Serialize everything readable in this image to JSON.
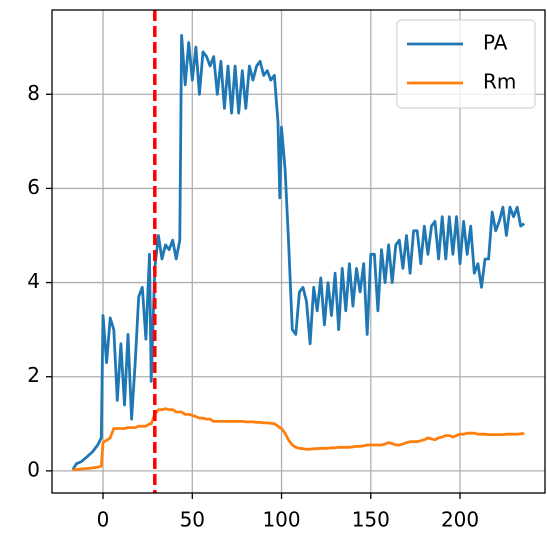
{
  "chart_data": {
    "type": "line",
    "x": [
      -17,
      -15,
      -12,
      -9,
      -6,
      -3,
      -1,
      0,
      2,
      4,
      6,
      8,
      10,
      12,
      14,
      16,
      18,
      20,
      22,
      24,
      26,
      27,
      29,
      31,
      33,
      35,
      37,
      39,
      41,
      43,
      44,
      46,
      48,
      50,
      52,
      54,
      56,
      58,
      60,
      62,
      64,
      66,
      68,
      70,
      72,
      74,
      76,
      78,
      80,
      82,
      84,
      86,
      88,
      90,
      92,
      94,
      96,
      98,
      99,
      100,
      102,
      104,
      106,
      108,
      110,
      112,
      114,
      116,
      118,
      120,
      122,
      124,
      126,
      128,
      130,
      132,
      134,
      136,
      138,
      140,
      142,
      144,
      146,
      148,
      150,
      152,
      154,
      156,
      158,
      160,
      162,
      164,
      166,
      168,
      170,
      172,
      174,
      176,
      178,
      180,
      182,
      184,
      186,
      188,
      190,
      192,
      194,
      196,
      198,
      200,
      202,
      204,
      206,
      208,
      210,
      212,
      214,
      216,
      218,
      220,
      222,
      224,
      226,
      228,
      230,
      232,
      234,
      236
    ],
    "series": [
      {
        "name": "PA",
        "color": "#1f77b4",
        "values": [
          0.02,
          0.15,
          0.2,
          0.3,
          0.4,
          0.55,
          0.7,
          3.3,
          2.3,
          3.25,
          3.0,
          1.5,
          2.7,
          1.4,
          2.9,
          1.1,
          2.3,
          3.7,
          3.9,
          2.8,
          4.6,
          1.9,
          4.3,
          5.0,
          4.5,
          4.8,
          4.7,
          4.9,
          4.5,
          4.9,
          9.25,
          8.2,
          9.1,
          8.3,
          9.0,
          8.0,
          8.9,
          8.8,
          8.6,
          8.8,
          8.0,
          8.7,
          7.7,
          8.6,
          7.6,
          8.6,
          7.6,
          8.5,
          7.7,
          8.6,
          8.3,
          8.6,
          8.7,
          8.4,
          8.5,
          8.3,
          8.4,
          7.4,
          5.8,
          7.3,
          6.4,
          4.8,
          3.0,
          2.9,
          3.8,
          3.9,
          3.6,
          2.7,
          3.9,
          3.4,
          4.1,
          3.1,
          4.0,
          3.3,
          4.2,
          3.0,
          4.3,
          3.4,
          4.4,
          3.5,
          4.3,
          3.8,
          4.4,
          2.9,
          4.6,
          4.6,
          3.4,
          4.7,
          4.0,
          4.8,
          4.0,
          4.8,
          4.9,
          4.3,
          5.0,
          4.2,
          5.1,
          5.1,
          4.4,
          5.2,
          4.6,
          5.2,
          5.3,
          4.5,
          5.4,
          4.5,
          5.4,
          4.6,
          5.4,
          4.4,
          5.3,
          4.6,
          5.2,
          4.2,
          4.4,
          3.9,
          4.5,
          4.5,
          5.5,
          5.1,
          5.3,
          5.6,
          5.0,
          5.6,
          5.4,
          5.6,
          5.2,
          5.25
        ]
      },
      {
        "name": "Rm",
        "color": "#ff7f0e",
        "values": [
          0.02,
          0.03,
          0.04,
          0.05,
          0.06,
          0.08,
          0.1,
          0.6,
          0.65,
          0.7,
          0.9,
          0.9,
          0.9,
          0.9,
          0.92,
          0.92,
          0.92,
          0.95,
          0.95,
          0.95,
          1.0,
          1.0,
          1.2,
          1.3,
          1.3,
          1.32,
          1.3,
          1.3,
          1.25,
          1.25,
          1.25,
          1.2,
          1.2,
          1.18,
          1.15,
          1.12,
          1.12,
          1.1,
          1.1,
          1.05,
          1.05,
          1.05,
          1.05,
          1.05,
          1.05,
          1.05,
          1.05,
          1.05,
          1.04,
          1.04,
          1.04,
          1.03,
          1.03,
          1.02,
          1.02,
          1.01,
          1.0,
          0.95,
          0.92,
          0.9,
          0.8,
          0.65,
          0.55,
          0.5,
          0.48,
          0.47,
          0.46,
          0.46,
          0.47,
          0.47,
          0.48,
          0.48,
          0.48,
          0.49,
          0.49,
          0.5,
          0.5,
          0.5,
          0.5,
          0.51,
          0.52,
          0.52,
          0.53,
          0.55,
          0.55,
          0.55,
          0.55,
          0.55,
          0.57,
          0.6,
          0.58,
          0.55,
          0.55,
          0.57,
          0.6,
          0.62,
          0.62,
          0.62,
          0.64,
          0.66,
          0.7,
          0.68,
          0.66,
          0.7,
          0.72,
          0.75,
          0.75,
          0.72,
          0.75,
          0.78,
          0.78,
          0.8,
          0.8,
          0.8,
          0.78,
          0.78,
          0.78,
          0.77,
          0.77,
          0.77,
          0.77,
          0.77,
          0.78,
          0.78,
          0.78,
          0.78,
          0.79,
          0.79
        ]
      }
    ],
    "vline": {
      "x": 29,
      "color": "#ff0000"
    },
    "xlim": [
      -28.6,
      247.6
    ],
    "ylim": [
      -0.47,
      9.79
    ],
    "xticks": [
      0,
      50,
      100,
      150,
      200
    ],
    "yticks": [
      0,
      2,
      4,
      6,
      8
    ],
    "grid": true,
    "legend": "upper right"
  }
}
